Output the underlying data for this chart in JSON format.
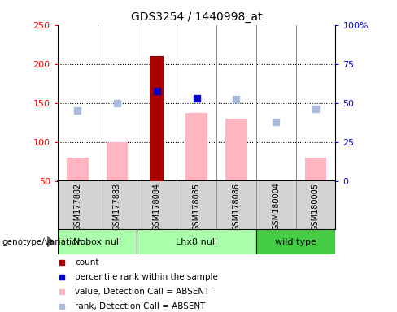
{
  "title": "GDS3254 / 1440998_at",
  "samples": [
    "GSM177882",
    "GSM177883",
    "GSM178084",
    "GSM178085",
    "GSM178086",
    "GSM180004",
    "GSM180005"
  ],
  "groups": [
    {
      "name": "Nobox null",
      "indices": [
        0,
        1
      ],
      "color": "#aaffaa"
    },
    {
      "name": "Lhx8 null",
      "indices": [
        2,
        3,
        4
      ],
      "color": "#aaffaa"
    },
    {
      "name": "wild type",
      "indices": [
        5,
        6
      ],
      "color": "#44cc44"
    }
  ],
  "count_values": [
    null,
    null,
    210,
    null,
    null,
    null,
    null
  ],
  "count_color": "#AA0000",
  "percentile_values": [
    null,
    null,
    165,
    156,
    null,
    null,
    null
  ],
  "percentile_color": "#0000CC",
  "value_absent": [
    80,
    100,
    null,
    137,
    130,
    null,
    80
  ],
  "value_absent_color": "#FFB6C1",
  "rank_absent": [
    140,
    150,
    null,
    null,
    155,
    126,
    142
  ],
  "rank_absent_color": "#AABBDD",
  "ylim_left": [
    50,
    250
  ],
  "ylim_right": [
    0,
    100
  ],
  "yticks_left": [
    50,
    100,
    150,
    200,
    250
  ],
  "yticks_right": [
    0,
    25,
    50,
    75,
    100
  ],
  "yticklabels_right": [
    "0",
    "25",
    "50",
    "75",
    "100%"
  ],
  "baseline": 50,
  "hgrid_lines": [
    100,
    150,
    200
  ],
  "legend_items": [
    {
      "label": "count",
      "color": "#AA0000"
    },
    {
      "label": "percentile rank within the sample",
      "color": "#0000CC"
    },
    {
      "label": "value, Detection Call = ABSENT",
      "color": "#FFB6C1"
    },
    {
      "label": "rank, Detection Call = ABSENT",
      "color": "#AABBDD"
    }
  ]
}
